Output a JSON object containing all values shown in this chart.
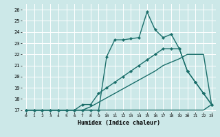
{
  "xlabel": "Humidex (Indice chaleur)",
  "xlim": [
    -0.5,
    23.5
  ],
  "ylim": [
    16.8,
    26.5
  ],
  "yticks": [
    17,
    18,
    19,
    20,
    21,
    22,
    23,
    24,
    25,
    26
  ],
  "xticks": [
    0,
    1,
    2,
    3,
    4,
    5,
    6,
    7,
    8,
    9,
    10,
    11,
    12,
    13,
    14,
    15,
    16,
    17,
    18,
    19,
    20,
    21,
    22,
    23
  ],
  "bg_color": "#cce8e8",
  "grid_color": "#ffffff",
  "line_color": "#1a6e6a",
  "line1": {
    "x": [
      0,
      1,
      2,
      3,
      4,
      5,
      6,
      7,
      8,
      9,
      10,
      11,
      12,
      13,
      14,
      15,
      16,
      17,
      18,
      19,
      20,
      21,
      22,
      23
    ],
    "y": [
      17,
      17,
      17,
      17,
      17,
      17,
      17,
      17,
      17,
      17,
      17,
      17,
      17,
      17,
      17,
      17,
      17,
      17,
      17,
      17,
      17,
      17,
      17,
      17.5
    ]
  },
  "line2": {
    "x": [
      0,
      1,
      2,
      3,
      4,
      5,
      6,
      7,
      8,
      9,
      10,
      11,
      12,
      13,
      14,
      15,
      16,
      17,
      18,
      19,
      20,
      21,
      22,
      23
    ],
    "y": [
      17,
      17,
      17,
      17,
      17,
      17,
      17,
      17,
      17.3,
      17.7,
      18.1,
      18.5,
      18.9,
      19.3,
      19.7,
      20.1,
      20.5,
      21.0,
      21.3,
      21.6,
      22.0,
      22.0,
      22.0,
      17.5
    ]
  },
  "line3": {
    "x": [
      0,
      1,
      2,
      3,
      4,
      5,
      6,
      7,
      8,
      9,
      10,
      11,
      12,
      13,
      14,
      15,
      16,
      17,
      18,
      19,
      20,
      21,
      22,
      23
    ],
    "y": [
      17,
      17,
      17,
      17,
      17,
      17,
      17,
      17.5,
      17.5,
      18.5,
      19.0,
      19.5,
      20.0,
      20.5,
      21.0,
      21.5,
      22.0,
      22.5,
      22.5,
      22.5,
      20.5,
      19.5,
      18.5,
      17.5
    ]
  },
  "line4": {
    "x": [
      0,
      1,
      2,
      3,
      4,
      5,
      6,
      7,
      8,
      9,
      10,
      11,
      12,
      13,
      14,
      15,
      16,
      17,
      18,
      19,
      20,
      21,
      22,
      23
    ],
    "y": [
      17,
      17,
      17,
      17,
      17,
      17,
      17,
      17,
      17,
      17,
      21.8,
      23.3,
      23.3,
      23.4,
      23.5,
      25.8,
      24.2,
      23.5,
      23.8,
      22.5,
      20.5,
      19.5,
      18.5,
      17.5
    ]
  }
}
